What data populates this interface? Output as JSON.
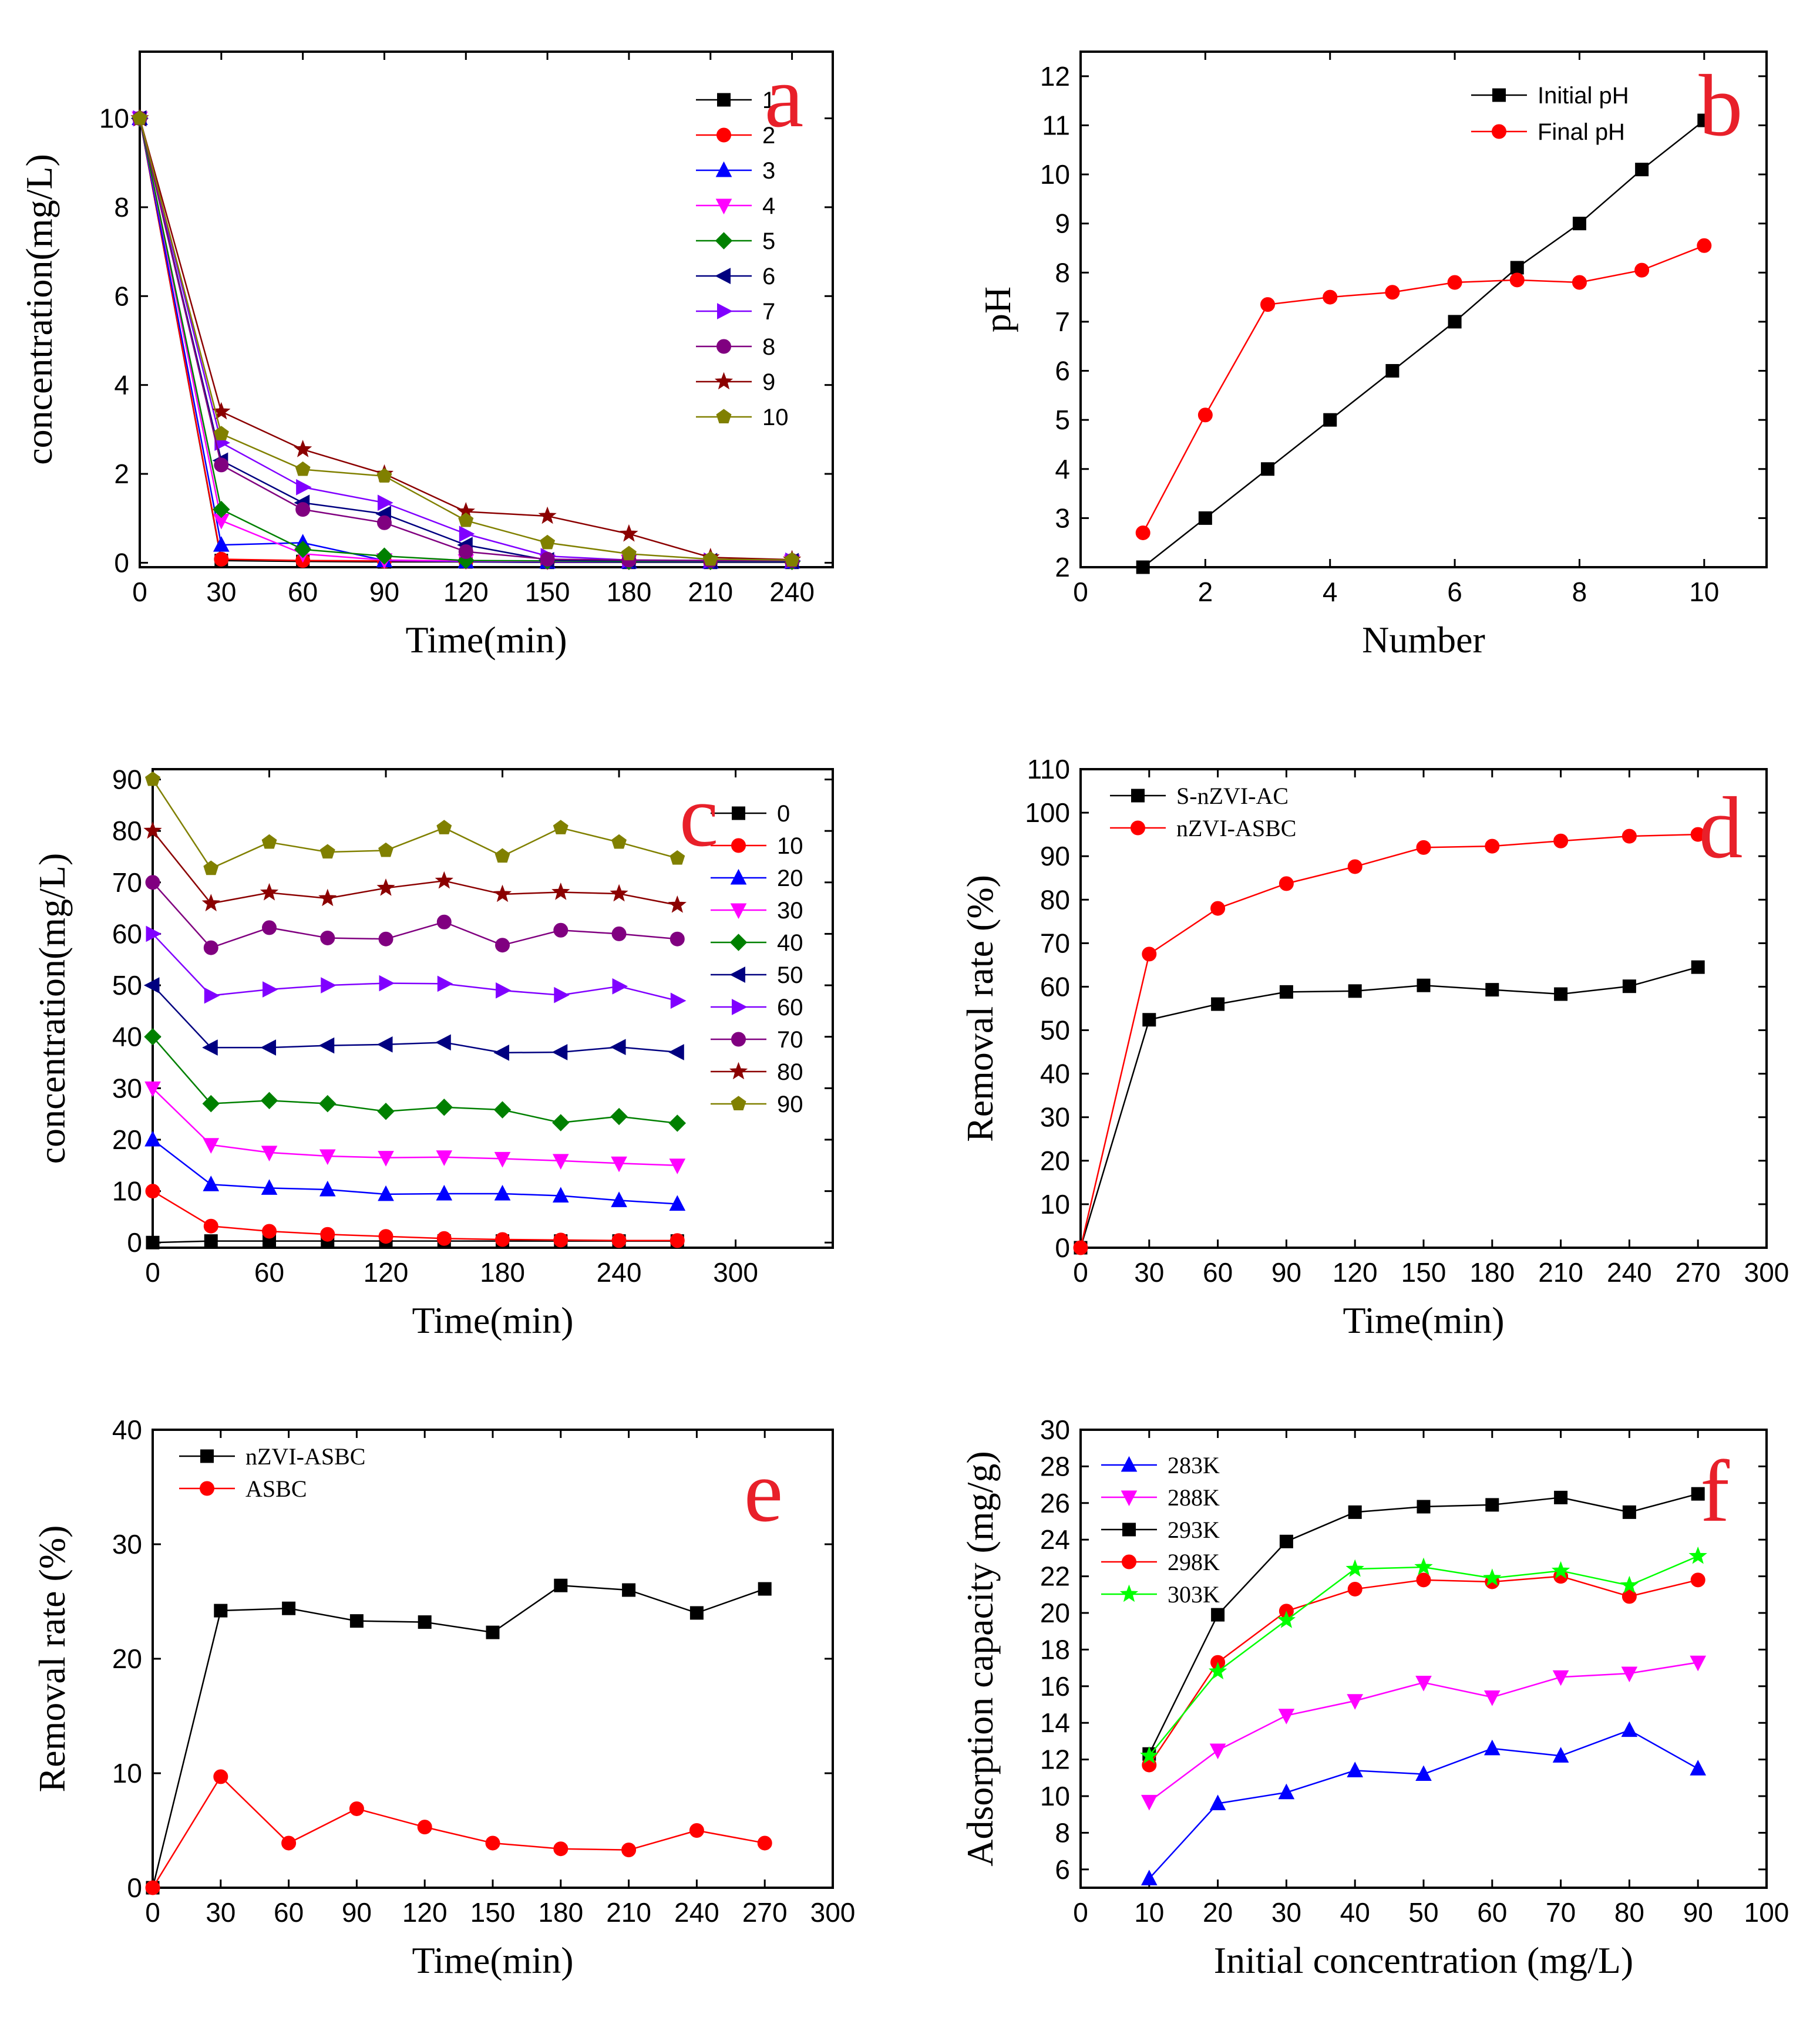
{
  "chart_data": [
    {
      "panel": "a",
      "type": "line",
      "title": "",
      "xlabel": "Time(min)",
      "ylabel": "concentration(mg/L)",
      "xlim": [
        0,
        255
      ],
      "ylim": [
        -0.1,
        11.5
      ],
      "xticks": [
        0,
        30,
        60,
        90,
        120,
        150,
        180,
        210,
        240
      ],
      "yticks": [
        0,
        2,
        4,
        6,
        8,
        10
      ],
      "legend_font": "sans",
      "x": [
        0,
        30,
        60,
        90,
        120,
        150,
        180,
        210,
        240
      ],
      "series": [
        {
          "name": "1",
          "color": "#000000",
          "marker": "square",
          "values": [
            10,
            0.05,
            0.03,
            0.02,
            0.02,
            0.01,
            0.01,
            0.01,
            0.01
          ]
        },
        {
          "name": "2",
          "color": "#ff0000",
          "marker": "circle",
          "values": [
            10,
            0.08,
            0.05,
            0.04,
            0.03,
            0.02,
            0.02,
            0.02,
            0.02
          ]
        },
        {
          "name": "3",
          "color": "#0000ff",
          "marker": "triangle-up",
          "values": [
            10,
            0.4,
            0.45,
            0.05,
            0.03,
            0.02,
            0.02,
            0.02,
            0.02
          ]
        },
        {
          "name": "4",
          "color": "#ff00ff",
          "marker": "triangle-down",
          "values": [
            10,
            0.95,
            0.2,
            0.06,
            0.04,
            0.03,
            0.03,
            0.03,
            0.03
          ]
        },
        {
          "name": "5",
          "color": "#008000",
          "marker": "diamond",
          "values": [
            10,
            1.2,
            0.3,
            0.15,
            0.05,
            0.04,
            0.03,
            0.03,
            0.03
          ]
        },
        {
          "name": "6",
          "color": "#000080",
          "marker": "triangle-left",
          "values": [
            10,
            2.3,
            1.35,
            1.1,
            0.4,
            0.06,
            0.05,
            0.04,
            0.04
          ]
        },
        {
          "name": "7",
          "color": "#8000ff",
          "marker": "triangle-right",
          "values": [
            10,
            2.7,
            1.7,
            1.35,
            0.65,
            0.15,
            0.06,
            0.05,
            0.05
          ]
        },
        {
          "name": "8",
          "color": "#800080",
          "marker": "circle",
          "values": [
            10,
            2.2,
            1.2,
            0.9,
            0.25,
            0.08,
            0.06,
            0.05,
            0.05
          ]
        },
        {
          "name": "9",
          "color": "#8b0000",
          "marker": "star",
          "values": [
            10,
            3.4,
            2.55,
            2.0,
            1.15,
            1.05,
            0.65,
            0.12,
            0.07
          ]
        },
        {
          "name": "10",
          "color": "#808000",
          "marker": "pentagon",
          "values": [
            10,
            2.9,
            2.1,
            1.95,
            0.95,
            0.45,
            0.2,
            0.08,
            0.06
          ]
        }
      ]
    },
    {
      "panel": "b",
      "type": "line",
      "title": "",
      "xlabel": "Number",
      "ylabel": "pH",
      "xlim": [
        0,
        11
      ],
      "ylim": [
        2,
        12.5
      ],
      "xticks": [
        0,
        2,
        4,
        6,
        8,
        10
      ],
      "yticks": [
        2,
        3,
        4,
        5,
        6,
        7,
        8,
        9,
        10,
        11,
        12
      ],
      "legend_font": "sans",
      "x": [
        1,
        2,
        3,
        4,
        5,
        6,
        7,
        8,
        9,
        10
      ],
      "series": [
        {
          "name": "Initial pH",
          "color": "#000000",
          "marker": "square",
          "values": [
            2,
            3,
            4,
            5,
            6,
            7,
            8.1,
            9,
            10.1,
            11.1
          ]
        },
        {
          "name": "Final pH",
          "color": "#ff0000",
          "marker": "circle",
          "values": [
            2.7,
            5.1,
            7.35,
            7.5,
            7.6,
            7.8,
            7.85,
            7.8,
            8.05,
            8.55
          ]
        }
      ]
    },
    {
      "panel": "c",
      "type": "line",
      "title": "",
      "xlabel": "Time(min)",
      "ylabel": "concentration(mg/L)",
      "xlim": [
        0,
        350
      ],
      "ylim": [
        -1,
        92
      ],
      "xticks": [
        0,
        60,
        120,
        180,
        240,
        300
      ],
      "yticks": [
        0,
        10,
        20,
        30,
        40,
        50,
        60,
        70,
        80,
        90
      ],
      "legend_font": "sans",
      "x": [
        0,
        30,
        60,
        90,
        120,
        150,
        180,
        210,
        240,
        270
      ],
      "series": [
        {
          "name": "0",
          "color": "#000000",
          "marker": "square",
          "values": [
            0,
            0.3,
            0.3,
            0.3,
            0.3,
            0.3,
            0.3,
            0.3,
            0.3,
            0.3
          ]
        },
        {
          "name": "10",
          "color": "#ff0000",
          "marker": "circle",
          "values": [
            10,
            3.2,
            2.2,
            1.6,
            1.2,
            0.8,
            0.6,
            0.5,
            0.4,
            0.4
          ]
        },
        {
          "name": "20",
          "color": "#0000ff",
          "marker": "triangle-up",
          "values": [
            20,
            11.3,
            10.6,
            10.3,
            9.4,
            9.5,
            9.5,
            9.1,
            8.2,
            7.5
          ]
        },
        {
          "name": "30",
          "color": "#ff00ff",
          "marker": "triangle-down",
          "values": [
            30,
            19,
            17.5,
            16.8,
            16.5,
            16.6,
            16.3,
            15.9,
            15.4,
            15
          ]
        },
        {
          "name": "40",
          "color": "#008000",
          "marker": "diamond",
          "values": [
            40,
            27,
            27.6,
            27,
            25.5,
            26.3,
            25.8,
            23.3,
            24.5,
            23.2
          ]
        },
        {
          "name": "50",
          "color": "#000080",
          "marker": "triangle-left",
          "values": [
            50,
            37.9,
            37.9,
            38.3,
            38.5,
            38.9,
            36.9,
            37,
            38,
            37
          ]
        },
        {
          "name": "60",
          "color": "#8000ff",
          "marker": "triangle-right",
          "values": [
            60,
            48,
            49.2,
            50,
            50.4,
            50.3,
            49,
            48.1,
            49.8,
            47
          ]
        },
        {
          "name": "70",
          "color": "#800080",
          "marker": "circle",
          "values": [
            70,
            57.3,
            61.2,
            59.2,
            59,
            62.3,
            57.8,
            60.7,
            60,
            59
          ]
        },
        {
          "name": "80",
          "color": "#8b0000",
          "marker": "star",
          "values": [
            80,
            65.9,
            68,
            66.9,
            68.9,
            70.3,
            67.7,
            68.1,
            67.8,
            65.6
          ]
        },
        {
          "name": "90",
          "color": "#808000",
          "marker": "pentagon",
          "values": [
            90,
            72.7,
            77.8,
            75.9,
            76.2,
            80.6,
            75.1,
            80.6,
            77.8,
            74.7
          ]
        }
      ]
    },
    {
      "panel": "d",
      "type": "line",
      "title": "",
      "xlabel": "Time(min)",
      "ylabel": "Removal rate (%)",
      "xlim": [
        0,
        300
      ],
      "ylim": [
        0,
        110
      ],
      "xticks": [
        0,
        30,
        60,
        90,
        120,
        150,
        180,
        210,
        240,
        270,
        300
      ],
      "yticks": [
        0,
        10,
        20,
        30,
        40,
        50,
        60,
        70,
        80,
        90,
        100,
        110
      ],
      "legend_font": "serif",
      "x": [
        0,
        30,
        60,
        90,
        120,
        150,
        180,
        210,
        240,
        270
      ],
      "series": [
        {
          "name": "S-nZVI-AC",
          "color": "#000000",
          "marker": "square",
          "values": [
            0,
            52.4,
            56,
            58.8,
            59,
            60.3,
            59.3,
            58.3,
            60.1,
            64.5
          ]
        },
        {
          "name": "nZVI-ASBC",
          "color": "#ff0000",
          "marker": "circle",
          "values": [
            0,
            67.5,
            78,
            83.7,
            87.6,
            92,
            92.3,
            93.5,
            94.6,
            95
          ]
        }
      ]
    },
    {
      "panel": "e",
      "type": "line",
      "title": "",
      "xlabel": "Time(min)",
      "ylabel": "Removal rate (%)",
      "xlim": [
        0,
        300
      ],
      "ylim": [
        0,
        40
      ],
      "xticks": [
        0,
        30,
        60,
        90,
        120,
        150,
        180,
        210,
        240,
        270,
        300
      ],
      "yticks": [
        0,
        10,
        20,
        30,
        40
      ],
      "legend_font": "serif",
      "x": [
        0,
        30,
        60,
        90,
        120,
        150,
        180,
        210,
        240,
        270
      ],
      "series": [
        {
          "name": "nZVI-ASBC",
          "color": "#000000",
          "marker": "square",
          "values": [
            0,
            24.2,
            24.4,
            23.3,
            23.2,
            22.3,
            26.4,
            26,
            24,
            26.1
          ]
        },
        {
          "name": "ASBC",
          "color": "#ff0000",
          "marker": "circle",
          "values": [
            0,
            9.7,
            3.9,
            6.9,
            5.3,
            3.9,
            3.4,
            3.3,
            5,
            3.9
          ]
        }
      ]
    },
    {
      "panel": "f",
      "type": "line",
      "title": "",
      "xlabel": "Initial concentration (mg/L)",
      "ylabel": "Adsorption capacity (mg/g)",
      "xlim": [
        0,
        100
      ],
      "ylim": [
        5,
        30
      ],
      "xticks": [
        0,
        10,
        20,
        30,
        40,
        50,
        60,
        70,
        80,
        90,
        100
      ],
      "yticks": [
        6,
        8,
        10,
        12,
        14,
        16,
        18,
        20,
        22,
        24,
        26,
        28,
        30
      ],
      "legend_font": "serif",
      "x": [
        10,
        20,
        30,
        40,
        50,
        60,
        70,
        80,
        90
      ],
      "series": [
        {
          "name": "283K",
          "color": "#0000ff",
          "marker": "triangle-up",
          "values": [
            5.5,
            9.6,
            10.2,
            11.4,
            11.2,
            12.6,
            12.2,
            13.6,
            11.5
          ]
        },
        {
          "name": "288K",
          "color": "#ff00ff",
          "marker": "triangle-down",
          "values": [
            9.7,
            12.5,
            14.4,
            15.2,
            16.2,
            15.4,
            16.5,
            16.7,
            17.3
          ]
        },
        {
          "name": "293K",
          "color": "#000000",
          "marker": "square",
          "values": [
            12.3,
            19.9,
            23.9,
            25.5,
            25.8,
            25.9,
            26.3,
            25.5,
            26.5
          ]
        },
        {
          "name": "298K",
          "color": "#ff0000",
          "marker": "circle",
          "values": [
            11.7,
            17.3,
            20.1,
            21.3,
            21.8,
            21.7,
            22,
            20.9,
            21.8
          ]
        },
        {
          "name": "303K",
          "color": "#00ff00",
          "marker": "star",
          "values": [
            12.2,
            16.8,
            19.6,
            22.4,
            22.5,
            21.9,
            22.3,
            21.5,
            23.1
          ]
        }
      ]
    }
  ]
}
